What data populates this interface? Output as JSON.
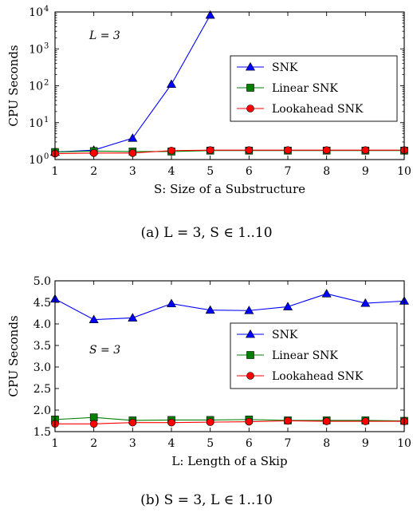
{
  "chart_data": [
    {
      "type": "line",
      "panel_caption": "(a)  L = 3, S ∈ 1..10",
      "xlabel": "S: Size of a Substructure",
      "ylabel": "CPU Seconds",
      "yscale": "log",
      "xlim": [
        1,
        10
      ],
      "ylim": [
        1,
        10000
      ],
      "x": [
        1,
        2,
        3,
        4,
        5,
        6,
        7,
        8,
        9,
        10
      ],
      "x_ticks": [
        "1",
        "2",
        "3",
        "4",
        "5",
        "6",
        "7",
        "8",
        "9",
        "10"
      ],
      "y_ticks": [
        {
          "value": 1,
          "base": "10",
          "exp": "0"
        },
        {
          "value": 10,
          "base": "10",
          "exp": "1"
        },
        {
          "value": 100,
          "base": "10",
          "exp": "2"
        },
        {
          "value": 1000,
          "base": "10",
          "exp": "3"
        },
        {
          "value": 10000,
          "base": "10",
          "exp": "4"
        }
      ],
      "annotation": "L = 3",
      "legend_position": "center-right",
      "series": [
        {
          "name": "SNK",
          "color": "#0000ff",
          "marker": "triangle",
          "values": [
            1.6,
            1.8,
            3.8,
            110,
            8200,
            null,
            null,
            null,
            null,
            null
          ]
        },
        {
          "name": "Linear SNK",
          "color": "#008000",
          "marker": "square",
          "values": [
            1.6,
            1.7,
            1.65,
            1.65,
            1.75,
            1.75,
            1.75,
            1.75,
            1.75,
            1.75
          ]
        },
        {
          "name": "Lookahead SNK",
          "color": "#ff0000",
          "marker": "circle",
          "values": [
            1.45,
            1.5,
            1.5,
            1.75,
            1.8,
            1.8,
            1.8,
            1.8,
            1.8,
            1.8
          ]
        }
      ]
    },
    {
      "type": "line",
      "panel_caption": "(b)  S = 3, L ∈ 1..10",
      "xlabel": "L: Length of a Skip",
      "ylabel": "CPU Seconds",
      "yscale": "linear",
      "xlim": [
        1,
        10
      ],
      "ylim": [
        1.5,
        5.0
      ],
      "x": [
        1,
        2,
        3,
        4,
        5,
        6,
        7,
        8,
        9,
        10
      ],
      "x_ticks": [
        "1",
        "2",
        "3",
        "4",
        "5",
        "6",
        "7",
        "8",
        "9",
        "10"
      ],
      "y_ticks": [
        {
          "value": 1.5,
          "label": "1.5"
        },
        {
          "value": 2.0,
          "label": "2.0"
        },
        {
          "value": 2.5,
          "label": "2.5"
        },
        {
          "value": 3.0,
          "label": "3.0"
        },
        {
          "value": 3.5,
          "label": "3.5"
        },
        {
          "value": 4.0,
          "label": "4.0"
        },
        {
          "value": 4.5,
          "label": "4.5"
        },
        {
          "value": 5.0,
          "label": "5.0"
        }
      ],
      "annotation": "S = 3",
      "legend_position": "center-right",
      "series": [
        {
          "name": "SNK",
          "color": "#0000ff",
          "marker": "triangle",
          "values": [
            4.58,
            4.1,
            4.14,
            4.47,
            4.32,
            4.31,
            4.4,
            4.7,
            4.48,
            4.53
          ]
        },
        {
          "name": "Linear SNK",
          "color": "#008000",
          "marker": "square",
          "values": [
            1.78,
            1.83,
            1.76,
            1.77,
            1.77,
            1.78,
            1.76,
            1.76,
            1.76,
            1.75
          ]
        },
        {
          "name": "Lookahead SNK",
          "color": "#ff0000",
          "marker": "circle",
          "values": [
            1.68,
            1.68,
            1.71,
            1.71,
            1.72,
            1.73,
            1.75,
            1.74,
            1.74,
            1.74
          ]
        }
      ]
    }
  ]
}
